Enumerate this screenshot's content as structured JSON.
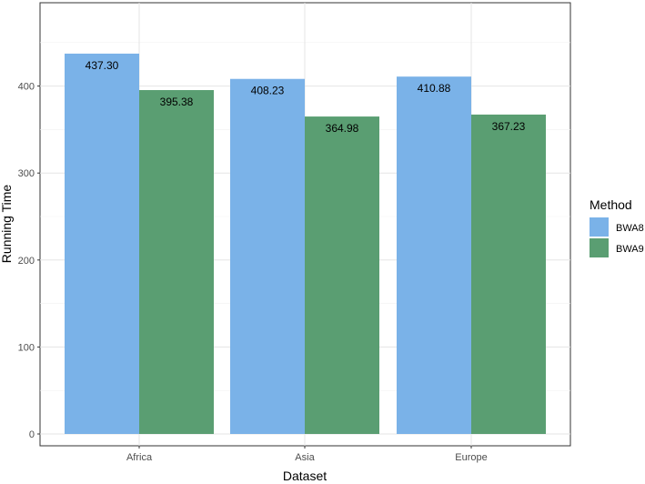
{
  "chart_data": {
    "type": "bar",
    "categories": [
      "Africa",
      "Asia",
      "Europe"
    ],
    "series": [
      {
        "name": "BWA8",
        "values": [
          437.3,
          408.23,
          410.88
        ],
        "color": "#7ab2e8",
        "labels": [
          "437.30",
          "408.23",
          "410.88"
        ]
      },
      {
        "name": "BWA9",
        "values": [
          395.38,
          364.98,
          367.23
        ],
        "color": "#5a9e72",
        "labels": [
          "395.38",
          "364.98",
          "367.23"
        ]
      }
    ],
    "xlabel": "Dataset",
    "ylabel": "Running Time",
    "ylim": [
      0,
      458
    ],
    "yticks": [
      0,
      100,
      200,
      300,
      400
    ],
    "ytick_labels": [
      "0",
      "100",
      "200",
      "300",
      "400"
    ],
    "grid": true,
    "legend": {
      "title": "Method",
      "position": "right"
    }
  }
}
